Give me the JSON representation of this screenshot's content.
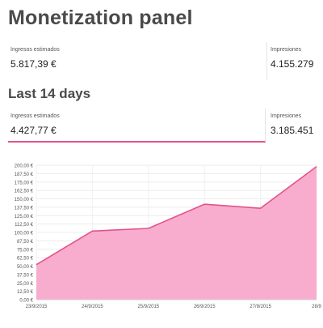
{
  "page_title": "Monetization panel",
  "totals": {
    "estimated_earnings_label": "Ingresos estimados",
    "estimated_earnings_value": "5.817,39 €",
    "impressions_label": "Impresiones",
    "impressions_value": "4.155.279"
  },
  "recent": {
    "heading": "Last 14 days",
    "estimated_earnings_label": "Ingresos estimados",
    "estimated_earnings_value": "4.427,77 €",
    "impressions_label": "Impresiones",
    "impressions_value": "3.185.451"
  },
  "colors": {
    "accent": "#e3538a",
    "fill": "#f9a9cb"
  },
  "chart_data": {
    "type": "area",
    "x": [
      "23/9/2015",
      "24/9/2015",
      "25/9/2015",
      "26/9/2015",
      "27/9/2015",
      "28/9"
    ],
    "values": [
      52,
      102,
      106,
      142,
      136,
      198
    ],
    "ylim": [
      0,
      200
    ],
    "yticks": [
      "200,00 €",
      "187,50 €",
      "175,00 €",
      "162,50 €",
      "150,00 €",
      "137,50 €",
      "125,00 €",
      "112,50 €",
      "100,00 €",
      "87,50 €",
      "75,00 €",
      "62,50 €",
      "50,00 €",
      "37,50 €",
      "25,00 €",
      "12,50 €",
      "0,00 €"
    ],
    "ytick_values": [
      200,
      187.5,
      175,
      162.5,
      150,
      137.5,
      125,
      112.5,
      100,
      87.5,
      75,
      62.5,
      50,
      37.5,
      25,
      12.5,
      0
    ],
    "xlabel": "",
    "ylabel": "",
    "grid": true,
    "legend": "none"
  }
}
